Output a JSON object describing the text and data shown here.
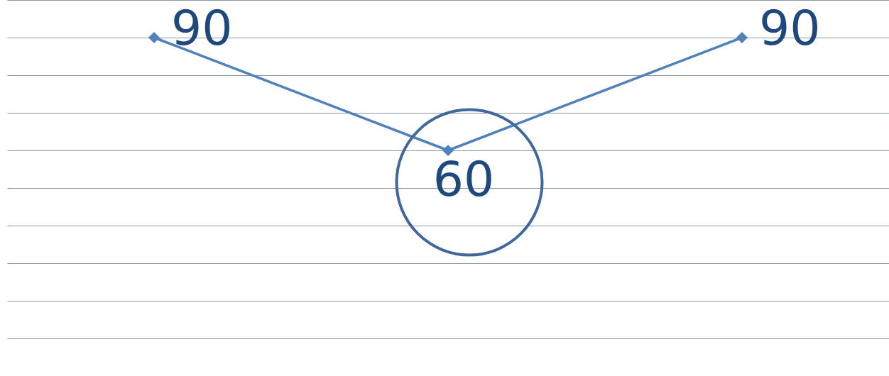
{
  "chart_data": {
    "type": "line",
    "categories": [
      null,
      null,
      null
    ],
    "series": [
      {
        "color": "#4f81bd",
        "values": [
          90,
          60,
          90
        ]
      }
    ],
    "ylim": [
      0,
      100
    ],
    "yticks": [
      {
        "value": 10,
        "label": null
      },
      {
        "value": 20,
        "label": null
      },
      {
        "value": 30,
        "label": null
      },
      {
        "value": 40,
        "label": null
      },
      {
        "value": 50,
        "label": null
      },
      {
        "value": 60,
        "label": null
      },
      {
        "value": 70,
        "label": null
      },
      {
        "value": 80,
        "label": null
      },
      {
        "value": 90,
        "label": null
      },
      {
        "value": 100,
        "label": null
      }
    ],
    "grid": "y",
    "marker": "diamond",
    "line_style": "solid",
    "data_labels": true,
    "tick_labels": false
  }
}
